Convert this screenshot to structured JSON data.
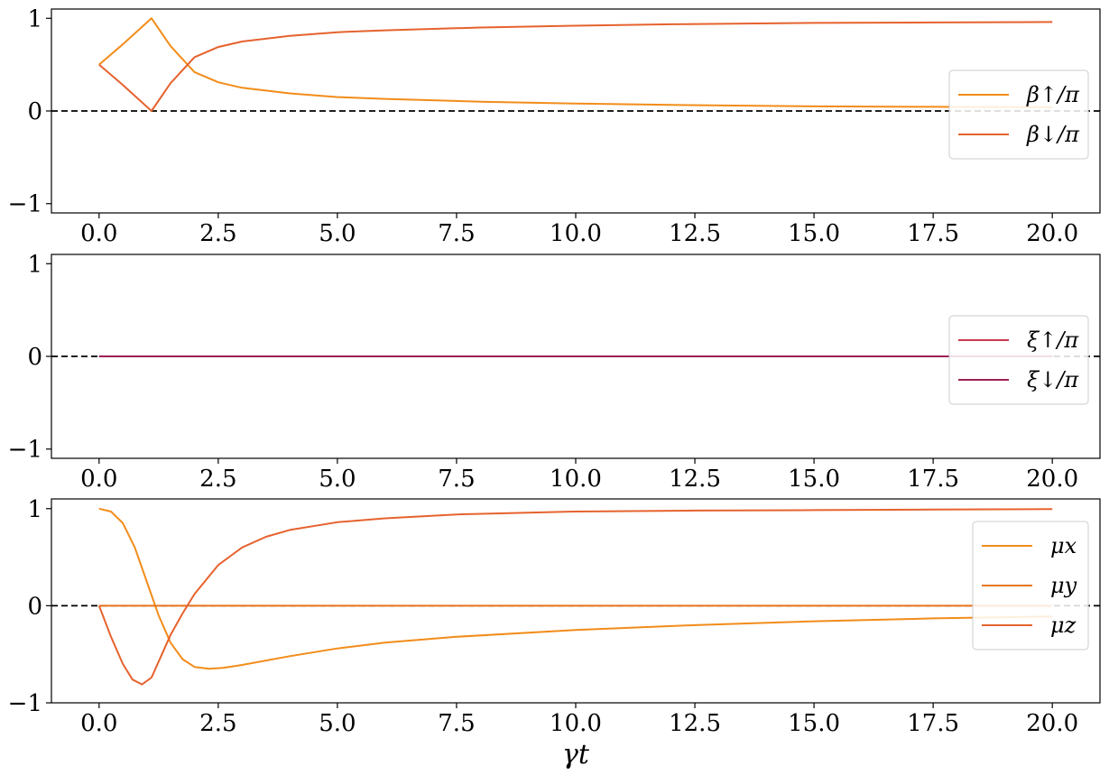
{
  "chart_data": [
    {
      "type": "line",
      "xlim": [
        -1,
        21
      ],
      "ylim": [
        -1.1,
        1.1
      ],
      "xticks": [
        0,
        2.5,
        5,
        7.5,
        10,
        12.5,
        15,
        17.5,
        20
      ],
      "xtick_labels": [
        "0.0",
        "2.5",
        "5.0",
        "7.5",
        "10.0",
        "12.5",
        "15.0",
        "17.5",
        "20.0"
      ],
      "yticks": [
        -1,
        0,
        1
      ],
      "ytick_labels": [
        "−1",
        "0",
        "1"
      ],
      "xlabel": "",
      "legend_position": "right",
      "zero_line": true,
      "series": [
        {
          "name": "β↑/π",
          "color": "#f28c1a",
          "x": [
            0,
            0.5,
            1.1,
            1.5,
            2,
            2.5,
            3,
            4,
            5,
            6,
            8,
            10,
            12,
            15,
            17.5,
            20
          ],
          "values": [
            0.5,
            0.72,
            1.0,
            0.7,
            0.42,
            0.31,
            0.25,
            0.19,
            0.15,
            0.13,
            0.1,
            0.08,
            0.065,
            0.05,
            0.045,
            0.04
          ]
        },
        {
          "name": "β↓/π",
          "color": "#e6622e",
          "x": [
            0,
            0.5,
            1.1,
            1.5,
            2,
            2.5,
            3,
            4,
            5,
            6,
            8,
            10,
            12,
            15,
            17.5,
            20
          ],
          "values": [
            0.5,
            0.28,
            0.0,
            0.3,
            0.58,
            0.69,
            0.75,
            0.81,
            0.85,
            0.87,
            0.9,
            0.92,
            0.935,
            0.95,
            0.955,
            0.96
          ]
        }
      ]
    },
    {
      "type": "line",
      "xlim": [
        -1,
        21
      ],
      "ylim": [
        -1.1,
        1.1
      ],
      "xticks": [
        0,
        2.5,
        5,
        7.5,
        10,
        12.5,
        15,
        17.5,
        20
      ],
      "xtick_labels": [
        "0.0",
        "2.5",
        "5.0",
        "7.5",
        "10.0",
        "12.5",
        "15.0",
        "17.5",
        "20.0"
      ],
      "yticks": [
        -1,
        0,
        1
      ],
      "ytick_labels": [
        "−1",
        "0",
        "1"
      ],
      "xlabel": "",
      "legend_position": "right",
      "zero_line": true,
      "series": [
        {
          "name": "ξ↑/π",
          "color": "#c73a4e",
          "x": [
            0,
            20
          ],
          "values": [
            0,
            0
          ]
        },
        {
          "name": "ξ↓/π",
          "color": "#9c2155",
          "x": [
            0,
            20
          ],
          "values": [
            0,
            0
          ]
        }
      ]
    },
    {
      "type": "line",
      "xlim": [
        -1,
        21
      ],
      "ylim": [
        -1,
        1.1
      ],
      "xticks": [
        0,
        2.5,
        5,
        7.5,
        10,
        12.5,
        15,
        17.5,
        20
      ],
      "xtick_labels": [
        "0.0",
        "2.5",
        "5.0",
        "7.5",
        "10.0",
        "12.5",
        "15.0",
        "17.5",
        "20.0"
      ],
      "yticks": [
        -1,
        0,
        1
      ],
      "ytick_labels": [
        "−1",
        "0",
        "1"
      ],
      "xlabel": "γt",
      "legend_position": "right",
      "zero_line": true,
      "series": [
        {
          "name": "μx",
          "color": "#f28c1a",
          "x": [
            0,
            0.25,
            0.5,
            0.75,
            1,
            1.25,
            1.5,
            1.75,
            2,
            2.3,
            2.6,
            3,
            4,
            5,
            6,
            7.5,
            10,
            12.5,
            15,
            17.5,
            20
          ],
          "values": [
            1.0,
            0.97,
            0.85,
            0.6,
            0.25,
            -0.1,
            -0.38,
            -0.55,
            -0.63,
            -0.65,
            -0.64,
            -0.61,
            -0.52,
            -0.44,
            -0.38,
            -0.32,
            -0.25,
            -0.2,
            -0.16,
            -0.13,
            -0.11
          ]
        },
        {
          "name": "μy",
          "color": "#e8751f",
          "x": [
            0,
            20
          ],
          "values": [
            0,
            0
          ]
        },
        {
          "name": "μz",
          "color": "#e6622e",
          "x": [
            0,
            0.25,
            0.5,
            0.7,
            0.9,
            1.1,
            1.3,
            1.5,
            1.75,
            2,
            2.5,
            3,
            3.5,
            4,
            5,
            6,
            7.5,
            10,
            12.5,
            15,
            17.5,
            20
          ],
          "values": [
            0,
            -0.32,
            -0.6,
            -0.76,
            -0.81,
            -0.74,
            -0.52,
            -0.3,
            -0.08,
            0.12,
            0.42,
            0.6,
            0.71,
            0.78,
            0.86,
            0.9,
            0.94,
            0.97,
            0.98,
            0.985,
            0.99,
            0.995
          ]
        }
      ]
    }
  ]
}
